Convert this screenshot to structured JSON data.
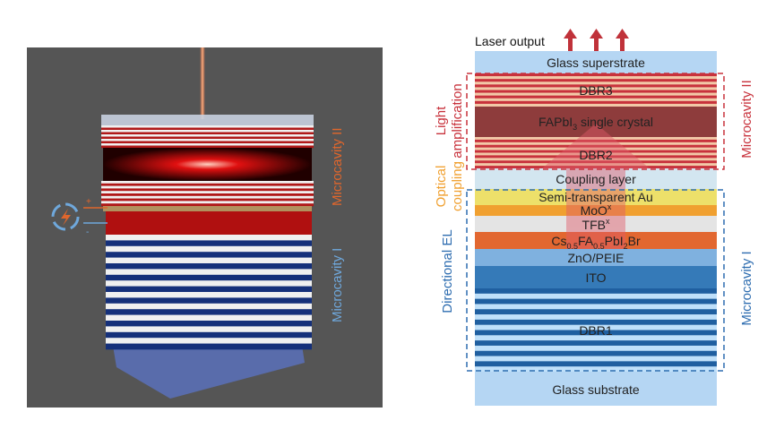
{
  "left_panel": {
    "label_top": "Microcavity II",
    "label_bottom": "Microcavity I",
    "power_plus": "+",
    "power_minus": "-",
    "icons": [
      "power-source-icon",
      "lightning-bolt-icon"
    ],
    "colors": {
      "background": "#555555",
      "microcavity_ii": "#e0662c",
      "microcavity_i": "#6fa8dc"
    }
  },
  "right_panel": {
    "laser_output": "Laser output",
    "layers": {
      "glass_superstrate": "Glass superstrate",
      "dbr3": "DBR3",
      "fapbi3": {
        "main": "FAPbI",
        "sub": "3",
        "rest": " single crystal"
      },
      "dbr2": "DBR2",
      "coupling": "Coupling layer",
      "au": "Semi-transparent Au",
      "moox": {
        "main": "MoO",
        "sup": "x"
      },
      "tfb": {
        "main": "TFB",
        "sup": "x"
      },
      "perovskite": {
        "p1": "Cs",
        "s1": "0.5",
        "p2": "FA",
        "s2": "0.5",
        "p3": "PbI",
        "s3": "2",
        "p4": "Br"
      },
      "zno": "ZnO/PEIE",
      "ito": "ITO",
      "dbr1": "DBR1",
      "glass_substrate": "Glass substrate"
    },
    "left_labels": {
      "light_amplification": [
        "Light",
        "amplification"
      ],
      "optical_coupling": [
        "Optical",
        "coupling"
      ],
      "directional_el": "Directional EL"
    },
    "right_labels": {
      "microcavity_ii": "Microcavity II",
      "microcavity_i": "Microcavity I"
    },
    "colors": {
      "red": "#c8323c",
      "orange": "#f0a030",
      "blue": "#2e6db0"
    }
  }
}
